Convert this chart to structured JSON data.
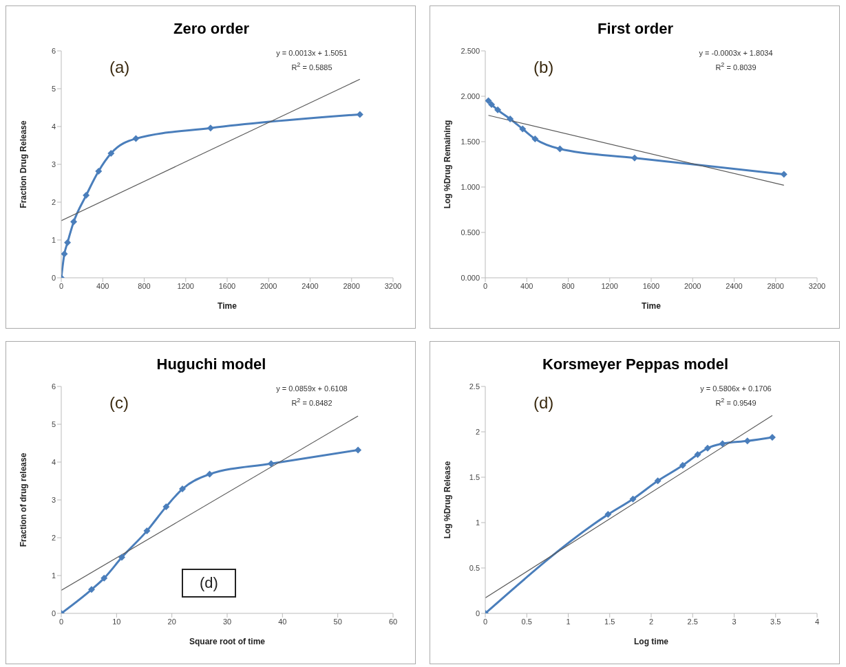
{
  "chart_data": [
    {
      "type": "line",
      "title": "Zero  order",
      "xlabel": "Time",
      "ylabel": "Fraction Drug Release",
      "annotations": [
        "(a)",
        "y = 0.0013x + 1.5051",
        "R$^{2}$ = 0.5885"
      ],
      "xlim": [
        0,
        3200
      ],
      "xticks": [
        0,
        400,
        800,
        1200,
        1600,
        2000,
        2400,
        2800,
        3200
      ],
      "ylim": [
        0,
        6
      ],
      "yticks": [
        0,
        1,
        2,
        3,
        4,
        5,
        6
      ],
      "grid": false,
      "legend": false,
      "marker": "diamond",
      "series": [
        {
          "color": "#4a7ebb",
          "x": [
            0,
            30,
            60,
            120,
            240,
            360,
            480,
            720,
            1440,
            2880
          ],
          "values": [
            0,
            0.63,
            0.93,
            1.48,
            2.18,
            2.82,
            3.29,
            3.68,
            3.96,
            4.32
          ]
        },
        {
          "color": "#595959",
          "marker": "none",
          "x": [
            0,
            2880
          ],
          "values": [
            1.51,
            5.25
          ]
        }
      ]
    },
    {
      "type": "line",
      "title": "First  order",
      "xlabel": "Time",
      "ylabel": "Log %Drug Remaining",
      "annotations": [
        "(b)",
        "y = -0.0003x + 1.8034",
        "R$^{2}$ = 0.8039"
      ],
      "xlim": [
        0,
        3200
      ],
      "xticks": [
        0,
        400,
        800,
        1200,
        1600,
        2000,
        2400,
        2800,
        3200
      ],
      "ylim": [
        0,
        2.5
      ],
      "yticks": [
        {
          "value": 0,
          "label": "0.000"
        },
        {
          "value": 0.5,
          "label": "0.500"
        },
        {
          "value": 1,
          "label": "1.000"
        },
        {
          "value": 1.5,
          "label": "1.500"
        },
        {
          "value": 2,
          "label": "2.000"
        },
        {
          "value": 2.5,
          "label": "2.500"
        }
      ],
      "grid": false,
      "legend": false,
      "marker": "diamond",
      "series": [
        {
          "color": "#4a7ebb",
          "x": [
            30,
            60,
            120,
            240,
            360,
            480,
            720,
            1440,
            2880
          ],
          "values": [
            1.95,
            1.91,
            1.85,
            1.75,
            1.64,
            1.53,
            1.42,
            1.32,
            1.14
          ]
        },
        {
          "color": "#595959",
          "marker": "none",
          "x": [
            30,
            2880
          ],
          "values": [
            1.79,
            1.02
          ]
        }
      ]
    },
    {
      "type": "line",
      "title": "Huguchi model",
      "xlabel": "Square root of time",
      "ylabel": "Fraction of drug release",
      "annotations": [
        "(c)",
        "y = 0.0859x + 0.6108",
        "R$^{2}$ = 0.8482",
        "(d)"
      ],
      "xlim": [
        0,
        60
      ],
      "xticks": [
        0,
        10,
        20,
        30,
        40,
        50,
        60
      ],
      "ylim": [
        0,
        6
      ],
      "yticks": [
        0,
        1,
        2,
        3,
        4,
        5,
        6
      ],
      "grid": false,
      "legend": false,
      "marker": "diamond",
      "series": [
        {
          "color": "#4a7ebb",
          "x": [
            0,
            5.48,
            7.75,
            10.95,
            15.49,
            18.97,
            21.91,
            26.83,
            37.95,
            53.67
          ],
          "values": [
            0,
            0.63,
            0.93,
            1.48,
            2.18,
            2.82,
            3.29,
            3.68,
            3.96,
            4.32
          ]
        },
        {
          "color": "#595959",
          "marker": "none",
          "x": [
            0,
            53.67
          ],
          "values": [
            0.61,
            5.22
          ]
        }
      ]
    },
    {
      "type": "line",
      "title": "Korsmeyer Peppas model",
      "xlabel": "Log time",
      "ylabel": "Log %Drug Release",
      "annotations": [
        "(d)",
        "y = 0.5806x + 0.1706",
        "R$^{2}$ = 0.9549"
      ],
      "xlim": [
        0,
        4
      ],
      "xticks": [
        0,
        0.5,
        1,
        1.5,
        2,
        2.5,
        3,
        3.5,
        4
      ],
      "ylim": [
        0,
        2.5
      ],
      "yticks": [
        0,
        0.5,
        1,
        1.5,
        2,
        2.5
      ],
      "grid": false,
      "legend": false,
      "marker": "diamond",
      "series": [
        {
          "color": "#4a7ebb",
          "x": [
            0,
            1.48,
            1.78,
            2.08,
            2.38,
            2.56,
            2.68,
            2.86,
            3.16,
            3.46
          ],
          "values": [
            0,
            1.09,
            1.26,
            1.46,
            1.63,
            1.75,
            1.82,
            1.87,
            1.9,
            1.94
          ]
        },
        {
          "color": "#595959",
          "marker": "none",
          "x": [
            0,
            3.46
          ],
          "values": [
            0.17,
            2.18
          ]
        }
      ]
    }
  ]
}
